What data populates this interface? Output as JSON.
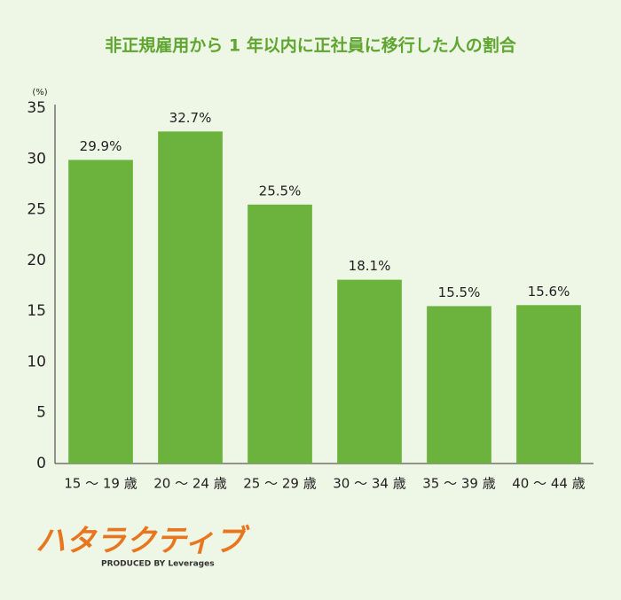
{
  "chart_data": {
    "type": "bar",
    "title": "非正規雇用から 1 年以内に正社員に移行した人の割合",
    "y_label": "(%)",
    "categories": [
      "15 ～ 19 歳",
      "20 ～ 24 歳",
      "25 ～ 29 歳",
      "30 ～ 34 歳",
      "35 ～ 39 歳",
      "40 ～ 44 歳"
    ],
    "values": [
      29.9,
      32.7,
      25.5,
      18.1,
      15.5,
      15.6
    ],
    "value_labels": [
      "29.9%",
      "32.7%",
      "25.5%",
      "18.1%",
      "15.5%",
      "15.6%"
    ],
    "color": "#6cb33e",
    "ylim": [
      0,
      35
    ],
    "yticks": [
      0,
      5,
      10,
      15,
      20,
      25,
      30,
      35
    ],
    "grid": false
  },
  "logo": {
    "name": "ハタラクティブ",
    "tagline": "PRODUCED BY Leverages"
  }
}
